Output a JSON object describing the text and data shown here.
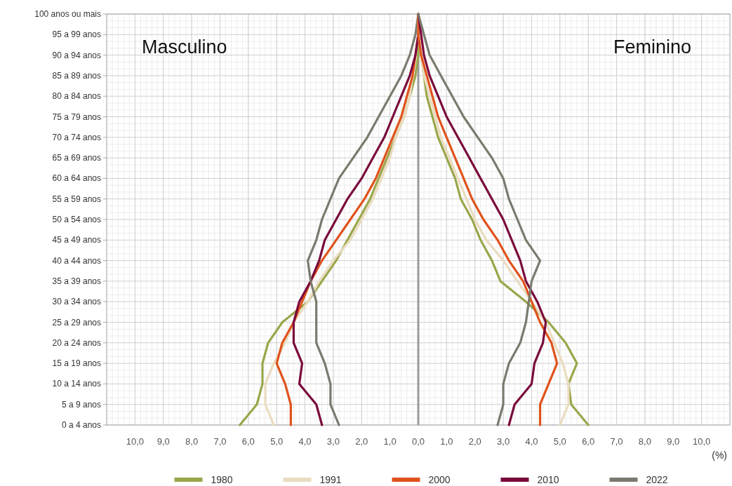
{
  "chart_data": {
    "type": "line",
    "orientation": "horizontal",
    "categories": [
      "100 anos ou mais",
      "95 a 99 anos",
      "90 a 94 anos",
      "85 a 89 anos",
      "80 a 84 anos",
      "75 a 79 anos",
      "70 a 74 anos",
      "65 a 69 anos",
      "60 a 64 anos",
      "55 a 59 anos",
      "50 a 54 anos",
      "45 a 49 anos",
      "40 a 44 anos",
      "35 a 39 anos",
      "30 a 34 anos",
      "25 a 29 anos",
      "20 a 24 anos",
      "15 a 19 anos",
      "10 a 14 anos",
      "5 a 9 anos",
      "0 a 4 anos"
    ],
    "xlabel": "(%)",
    "annotations": [
      "Masculino",
      "Feminino"
    ],
    "xlim": [
      -11,
      11
    ],
    "xticks": [
      {
        "value": -10,
        "label": "10,0"
      },
      {
        "value": -9,
        "label": "9,0"
      },
      {
        "value": -8,
        "label": "8,0"
      },
      {
        "value": -7,
        "label": "7,0"
      },
      {
        "value": -6,
        "label": "6,0"
      },
      {
        "value": -5,
        "label": "5,0"
      },
      {
        "value": -4,
        "label": "4,0"
      },
      {
        "value": -3,
        "label": "3,0"
      },
      {
        "value": -2,
        "label": "2,0"
      },
      {
        "value": -1,
        "label": "1,0"
      },
      {
        "value": 0,
        "label": "0,0"
      },
      {
        "value": 1,
        "label": "1,0"
      },
      {
        "value": 2,
        "label": "2,0"
      },
      {
        "value": 3,
        "label": "3,0"
      },
      {
        "value": 4,
        "label": "4,0"
      },
      {
        "value": 5,
        "label": "5,0"
      },
      {
        "value": 6,
        "label": "6,0"
      },
      {
        "value": 7,
        "label": "7,0"
      },
      {
        "value": 8,
        "label": "8,0"
      },
      {
        "value": 9,
        "label": "9,0"
      },
      {
        "value": 10,
        "label": "10,0"
      }
    ],
    "grid": true,
    "legend": "bottom",
    "line_style": "solid",
    "marker": "none",
    "ref_lines": [
      {
        "axis": "x",
        "value": 0,
        "color": "#9a9a9a"
      }
    ],
    "series": [
      {
        "name": "1980",
        "color": "#9aa64a",
        "values": [
          0,
          0,
          0,
          -0.1,
          -0.3,
          -0.5,
          -0.8,
          -1.1,
          -1.4,
          -1.7,
          -2.1,
          -2.5,
          -2.9,
          -3.4,
          -3.9,
          -4.8,
          -5.3,
          -5.5,
          -5.5,
          -5.7,
          -6.3
        ]
      },
      {
        "name": "1991",
        "color": "#eadcc0",
        "values": [
          0,
          0,
          -0.1,
          -0.2,
          -0.3,
          -0.5,
          -0.8,
          -1.0,
          -1.3,
          -1.6,
          -2.0,
          -2.4,
          -3.0,
          -3.5,
          -3.9,
          -4.4,
          -4.7,
          -5.1,
          -5.4,
          -5.4,
          -5.1
        ]
      },
      {
        "name": "2000",
        "color": "#e0521b",
        "values": [
          0,
          0,
          -0.1,
          -0.2,
          -0.4,
          -0.6,
          -0.9,
          -1.2,
          -1.5,
          -1.9,
          -2.4,
          -2.9,
          -3.4,
          -3.8,
          -4.1,
          -4.4,
          -4.8,
          -5.0,
          -4.7,
          -4.5,
          -4.5
        ]
      },
      {
        "name": "2010",
        "color": "#7a0a3c",
        "values": [
          0,
          0,
          -0.1,
          -0.3,
          -0.6,
          -0.9,
          -1.2,
          -1.6,
          -2.0,
          -2.5,
          -2.9,
          -3.3,
          -3.5,
          -3.8,
          -4.2,
          -4.4,
          -4.4,
          -4.1,
          -4.2,
          -3.6,
          -3.4
        ]
      },
      {
        "name": "2022",
        "color": "#7a7a6e",
        "values": [
          0,
          -0.1,
          -0.3,
          -0.6,
          -1.0,
          -1.4,
          -1.8,
          -2.3,
          -2.8,
          -3.1,
          -3.4,
          -3.6,
          -3.9,
          -3.8,
          -3.6,
          -3.6,
          -3.6,
          -3.3,
          -3.1,
          -3.1,
          -2.8
        ]
      },
      {
        "color": "#9aa64a",
        "values": [
          0,
          0,
          0.1,
          0.2,
          0.3,
          0.5,
          0.7,
          1.0,
          1.3,
          1.5,
          1.9,
          2.2,
          2.6,
          2.9,
          3.8,
          4.6,
          5.2,
          5.6,
          5.3,
          5.4,
          6.0
        ]
      },
      {
        "color": "#eadcc0",
        "values": [
          0,
          0,
          0.1,
          0.2,
          0.4,
          0.6,
          0.8,
          1.1,
          1.4,
          1.7,
          2.0,
          2.4,
          3.0,
          3.5,
          4.0,
          4.5,
          4.8,
          5.1,
          5.3,
          5.3,
          5.0
        ]
      },
      {
        "color": "#e0521b",
        "values": [
          0,
          0,
          0.1,
          0.3,
          0.5,
          0.7,
          1.0,
          1.3,
          1.6,
          1.9,
          2.3,
          2.8,
          3.2,
          3.7,
          4.0,
          4.3,
          4.7,
          4.9,
          4.6,
          4.3,
          4.3
        ]
      },
      {
        "color": "#7a0a3c",
        "values": [
          0,
          0.1,
          0.2,
          0.4,
          0.7,
          1.0,
          1.4,
          1.8,
          2.2,
          2.6,
          3.0,
          3.3,
          3.6,
          3.8,
          4.2,
          4.5,
          4.4,
          4.1,
          4.0,
          3.4,
          3.2
        ]
      },
      {
        "color": "#7a7a6e",
        "values": [
          0,
          0.2,
          0.4,
          0.8,
          1.2,
          1.6,
          2.1,
          2.6,
          3.0,
          3.2,
          3.5,
          3.8,
          4.3,
          4.0,
          3.9,
          3.8,
          3.6,
          3.2,
          3.0,
          3.0,
          2.8
        ]
      }
    ]
  }
}
